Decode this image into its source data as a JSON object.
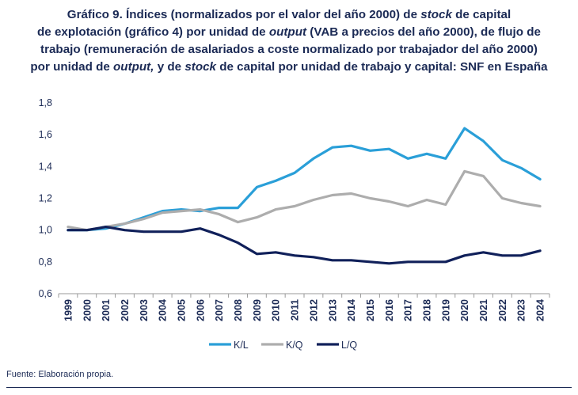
{
  "title": {
    "line1_a": "Gráfico 9. Índices (normalizados por el valor del año 2000) de ",
    "line1_em": "stock",
    "line1_b": " de capital",
    "line2_a": "de explotación (gráfico 4) por unidad de ",
    "line2_em": "output",
    "line2_b": " (VAB a precios del año 2000), de flujo de",
    "line3": "trabajo (remuneración de asalariados a coste normalizado por trabajador del año 2000)",
    "line4_a": "por unidad de ",
    "line4_em": "output,",
    "line4_b": " y de ",
    "line4_em2": "stock",
    "line4_c": " de capital por unidad de trabajo y capital: SNF en España"
  },
  "source": "Fuente: Elaboración propia.",
  "chart_data": {
    "type": "line",
    "x": [
      "1999",
      "2000",
      "2001",
      "2002",
      "2003",
      "2004",
      "2005",
      "2006",
      "2007",
      "2008",
      "2009",
      "2010",
      "2011",
      "2012",
      "2013",
      "2014",
      "2015",
      "2016",
      "2017",
      "2018",
      "2019",
      "2020",
      "2021",
      "2022",
      "2023",
      "2024"
    ],
    "ylim": [
      0.6,
      1.8
    ],
    "yticks": [
      "0,6",
      "0,8",
      "1,0",
      "1,2",
      "1,4",
      "1,6",
      "1,8"
    ],
    "ytick_values": [
      0.6,
      0.8,
      1.0,
      1.2,
      1.4,
      1.6,
      1.8
    ],
    "grid": false,
    "legend_position": "bottom",
    "series": [
      {
        "name": "K/L",
        "color": "#2a9fd8",
        "values": [
          1.0,
          1.0,
          1.01,
          1.04,
          1.08,
          1.12,
          1.13,
          1.12,
          1.14,
          1.14,
          1.27,
          1.31,
          1.36,
          1.45,
          1.52,
          1.53,
          1.5,
          1.51,
          1.45,
          1.48,
          1.45,
          1.64,
          1.56,
          1.44,
          1.39,
          1.32
        ]
      },
      {
        "name": "K/Q",
        "color": "#adadad",
        "values": [
          1.02,
          1.0,
          1.02,
          1.04,
          1.07,
          1.11,
          1.12,
          1.13,
          1.1,
          1.05,
          1.08,
          1.13,
          1.15,
          1.19,
          1.22,
          1.23,
          1.2,
          1.18,
          1.15,
          1.19,
          1.16,
          1.37,
          1.34,
          1.2,
          1.17,
          1.15
        ]
      },
      {
        "name": "L/Q",
        "color": "#10205a",
        "values": [
          1.0,
          1.0,
          1.02,
          1.0,
          0.99,
          0.99,
          0.99,
          1.01,
          0.97,
          0.92,
          0.85,
          0.86,
          0.84,
          0.83,
          0.81,
          0.81,
          0.8,
          0.79,
          0.8,
          0.8,
          0.8,
          0.84,
          0.86,
          0.84,
          0.84,
          0.87
        ]
      }
    ]
  }
}
